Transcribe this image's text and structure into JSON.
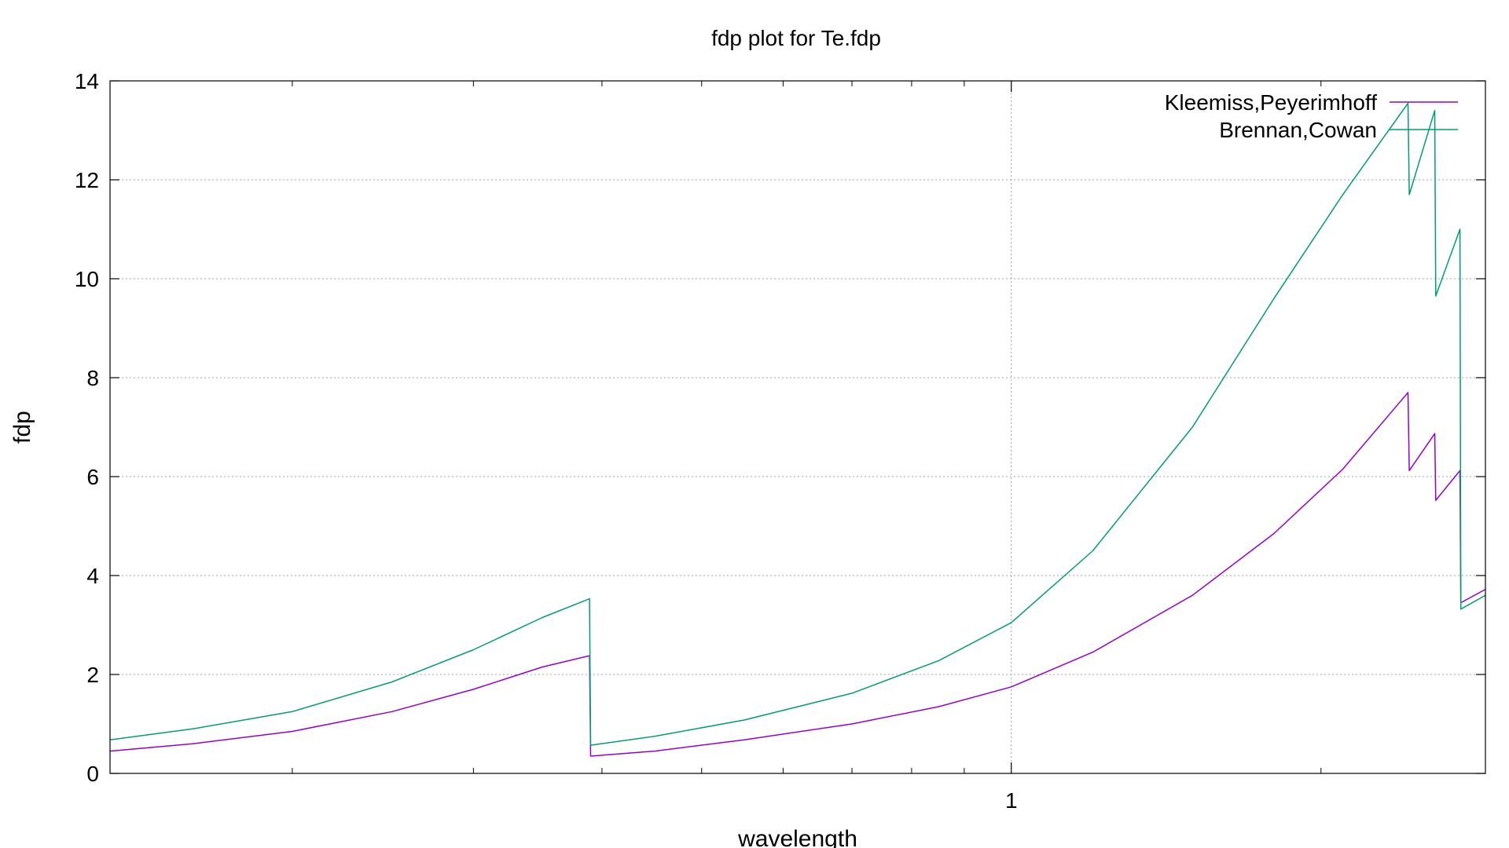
{
  "chart_data": {
    "type": "line",
    "title": "fdp plot for Te.fdp",
    "xlabel": "wavelength",
    "ylabel": "fdp",
    "xscale": "log",
    "xlim": [
      0.133,
      2.89
    ],
    "ylim": [
      0,
      14
    ],
    "xticks_major": [
      {
        "value": 1,
        "label": "1"
      }
    ],
    "xticks_minor": [
      0.2,
      0.3,
      0.4,
      0.5,
      0.6,
      0.7,
      0.8,
      0.9,
      2
    ],
    "yticks": [
      {
        "value": 0,
        "label": "0"
      },
      {
        "value": 2,
        "label": "2"
      },
      {
        "value": 4,
        "label": "4"
      },
      {
        "value": 6,
        "label": "6"
      },
      {
        "value": 8,
        "label": "8"
      },
      {
        "value": 10,
        "label": "10"
      },
      {
        "value": 12,
        "label": "12"
      },
      {
        "value": 14,
        "label": "14"
      }
    ],
    "grid": true,
    "legend_position": "top-right",
    "series": [
      {
        "name": "Kleemiss,Peyerimhoff",
        "color": "#9400d3",
        "points": [
          [
            0.133,
            0.45
          ],
          [
            0.16,
            0.6
          ],
          [
            0.2,
            0.85
          ],
          [
            0.25,
            1.25
          ],
          [
            0.3,
            1.7
          ],
          [
            0.35,
            2.15
          ],
          [
            0.389,
            2.38
          ],
          [
            0.39,
            0.35
          ],
          [
            0.45,
            0.45
          ],
          [
            0.55,
            0.68
          ],
          [
            0.7,
            1.0
          ],
          [
            0.85,
            1.35
          ],
          [
            1.0,
            1.75
          ],
          [
            1.2,
            2.45
          ],
          [
            1.5,
            3.6
          ],
          [
            1.8,
            4.85
          ],
          [
            2.1,
            6.15
          ],
          [
            2.43,
            7.7
          ],
          [
            2.437,
            6.12
          ],
          [
            2.58,
            6.87
          ],
          [
            2.586,
            5.52
          ],
          [
            2.73,
            6.12
          ],
          [
            2.735,
            3.45
          ],
          [
            2.89,
            3.72
          ]
        ]
      },
      {
        "name": "Brennan,Cowan",
        "color": "#009e73",
        "points": [
          [
            0.133,
            0.68
          ],
          [
            0.16,
            0.9
          ],
          [
            0.2,
            1.25
          ],
          [
            0.25,
            1.85
          ],
          [
            0.3,
            2.5
          ],
          [
            0.35,
            3.15
          ],
          [
            0.389,
            3.53
          ],
          [
            0.39,
            0.57
          ],
          [
            0.45,
            0.75
          ],
          [
            0.55,
            1.08
          ],
          [
            0.7,
            1.62
          ],
          [
            0.85,
            2.28
          ],
          [
            1.0,
            3.05
          ],
          [
            1.2,
            4.5
          ],
          [
            1.5,
            7.0
          ],
          [
            1.8,
            9.6
          ],
          [
            2.1,
            11.7
          ],
          [
            2.43,
            13.55
          ],
          [
            2.437,
            11.7
          ],
          [
            2.58,
            13.4
          ],
          [
            2.586,
            9.65
          ],
          [
            2.73,
            11.0
          ],
          [
            2.735,
            3.32
          ],
          [
            2.89,
            3.6
          ]
        ]
      }
    ]
  }
}
